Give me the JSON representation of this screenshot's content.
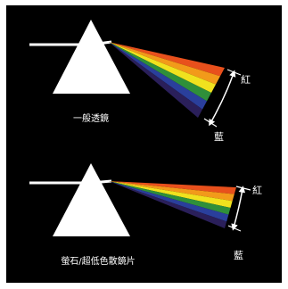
{
  "panels": [
    {
      "caption": "一般透鏡",
      "red_label": "紅",
      "blue_label": "藍"
    },
    {
      "caption": "螢石/超低色散鏡片",
      "red_label": "紅",
      "blue_label": "藍"
    }
  ],
  "spectrum_colors": [
    "#e8501c",
    "#f29a1a",
    "#f0e21e",
    "#2f8f3a",
    "#2a3f9c",
    "#2a1f5a"
  ],
  "colors": {
    "background": "#000000",
    "prism": "#ffffff",
    "beam": "#ffffff"
  }
}
